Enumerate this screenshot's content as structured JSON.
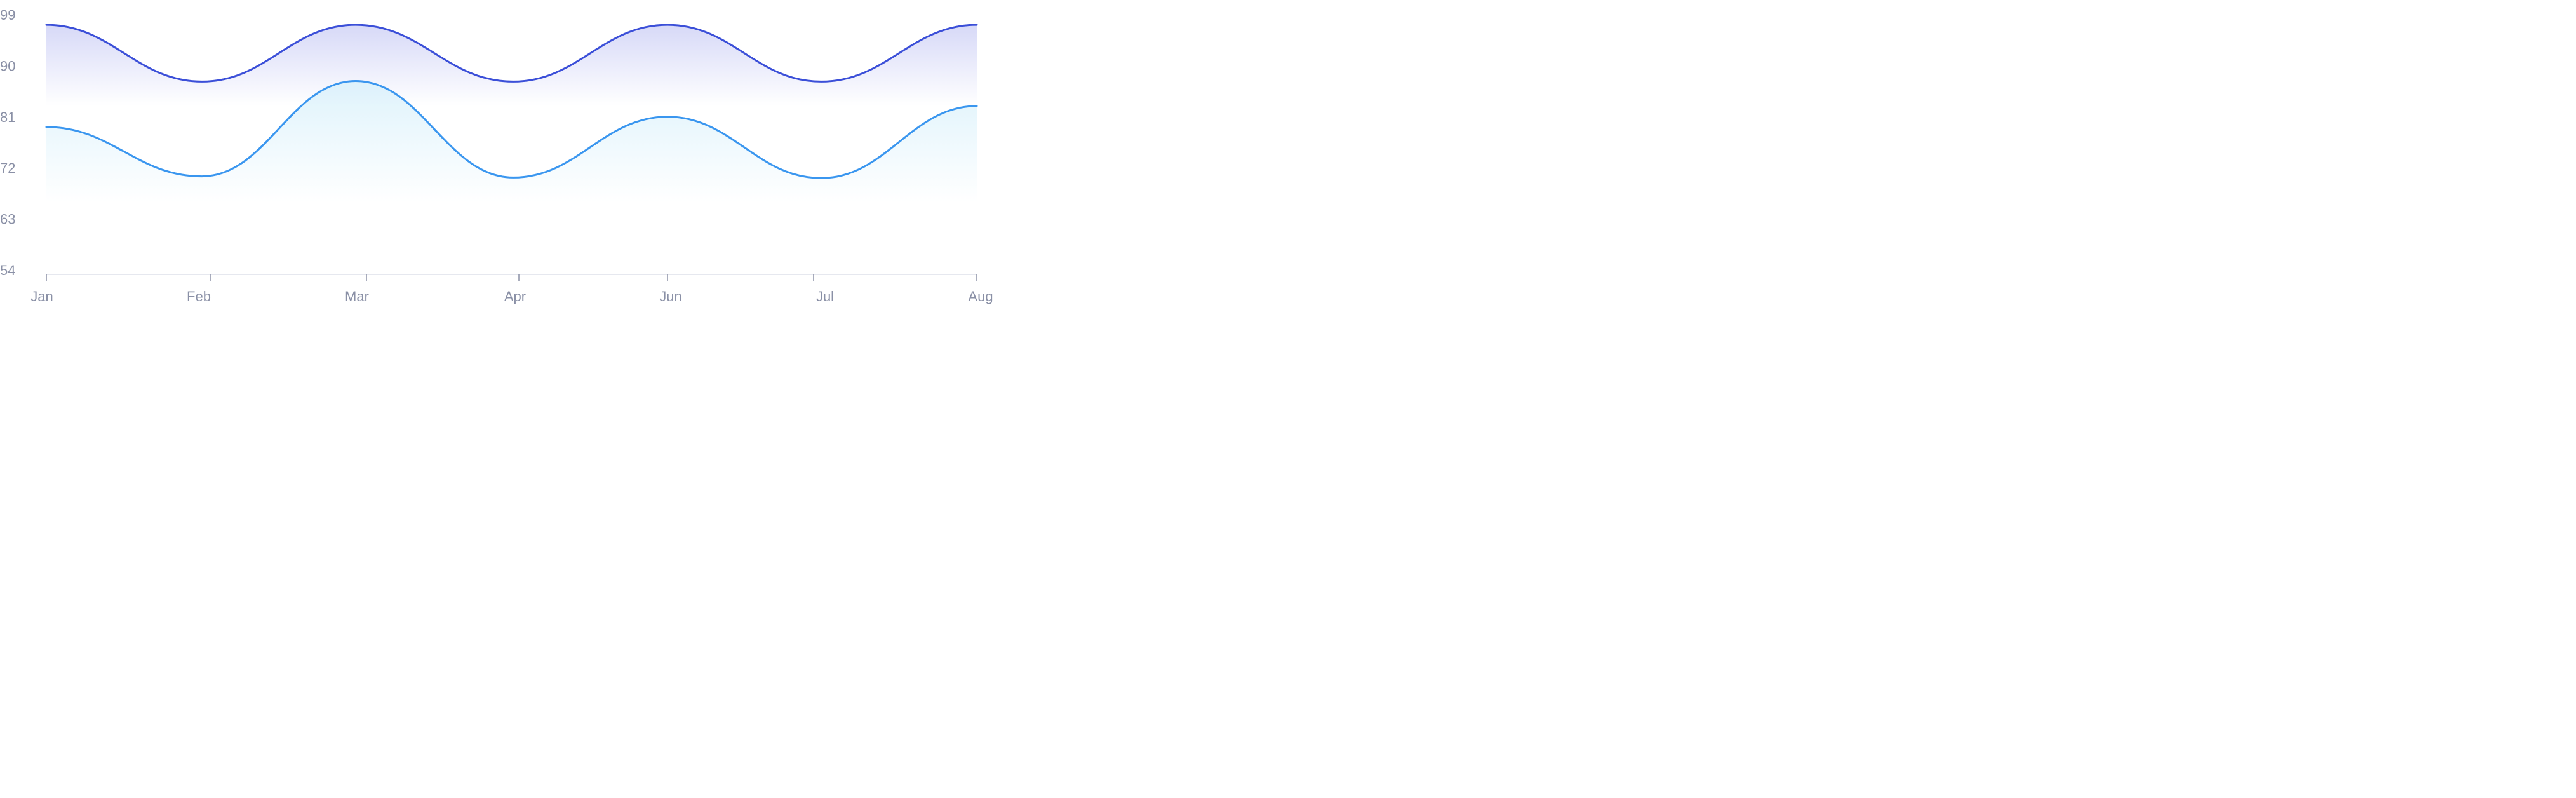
{
  "chart_data": {
    "type": "area",
    "title": "",
    "xlabel": "",
    "ylabel": "",
    "categories": [
      "Jan",
      "Feb",
      "Mar",
      "Apr",
      "Jun",
      "Jul",
      "Aug"
    ],
    "yticks": [
      54,
      63,
      72,
      81,
      90,
      99
    ],
    "ylim": [
      54,
      99
    ],
    "grid": false,
    "legend": "none",
    "series": [
      {
        "name": "",
        "color": "#3b4fd8",
        "fill": "#c9ccf5",
        "values": [
          97.2,
          87.2,
          97.2,
          87.2,
          97.2,
          87.2,
          97.2
        ]
      },
      {
        "name": "",
        "color": "#3a96ef",
        "fill": "#d9f1fb",
        "values": [
          79.2,
          70.5,
          87.3,
          70.3,
          81.0,
          70.2,
          82.9
        ]
      }
    ]
  }
}
